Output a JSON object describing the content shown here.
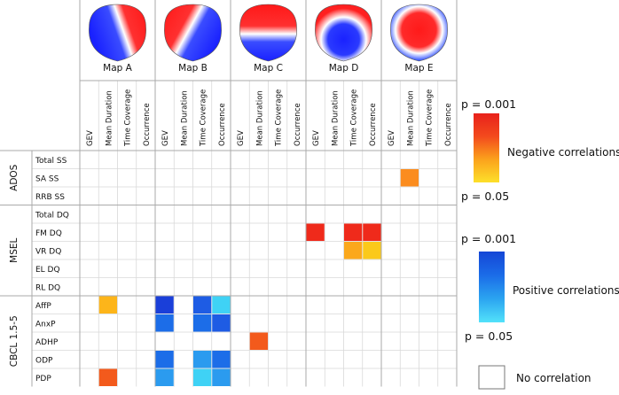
{
  "chart_data": {
    "type": "heatmap",
    "maps": [
      {
        "label": "Map A",
        "style": "A"
      },
      {
        "label": "Map B",
        "style": "B"
      },
      {
        "label": "Map C",
        "style": "C"
      },
      {
        "label": "Map D",
        "style": "D"
      },
      {
        "label": "Map E",
        "style": "E"
      }
    ],
    "measures": [
      "GEV",
      "Mean Duration",
      "Time Coverage",
      "Occurrence"
    ],
    "groups": [
      {
        "name": "ADOS",
        "rows": [
          "Total SS",
          "SA SS",
          "RRB SS"
        ]
      },
      {
        "name": "MSEL",
        "rows": [
          "Total DQ",
          "FM DQ",
          "VR DQ",
          "EL DQ",
          "RL DQ"
        ]
      },
      {
        "name": "CBCL 1.5-5",
        "rows": [
          "AffP",
          "AnxP",
          "ADHP",
          "ODP",
          "PDP"
        ]
      }
    ],
    "cell_colors": {
      "orange": "#fb8c1e",
      "red": "#ef2a1b",
      "red_orange": "#f35a1c",
      "yellow_orange": "#fba81c",
      "yellow": "#fbc91a",
      "amber": "#fdb51a",
      "blue_dark": "#1a3fd9",
      "blue": "#1c6de8",
      "blue_mid": "#1e5ce4",
      "blue_light": "#2b9bef",
      "cyan": "#3fd2f5"
    },
    "cells": [
      {
        "row": 1,
        "col": 17,
        "color": "orange"
      },
      {
        "row": 4,
        "col": 12,
        "color": "red"
      },
      {
        "row": 4,
        "col": 14,
        "color": "red"
      },
      {
        "row": 4,
        "col": 15,
        "color": "red"
      },
      {
        "row": 5,
        "col": 14,
        "color": "yellow_orange"
      },
      {
        "row": 5,
        "col": 15,
        "color": "yellow"
      },
      {
        "row": 8,
        "col": 1,
        "color": "amber"
      },
      {
        "row": 8,
        "col": 4,
        "color": "blue_dark"
      },
      {
        "row": 8,
        "col": 6,
        "color": "blue_mid"
      },
      {
        "row": 8,
        "col": 7,
        "color": "cyan"
      },
      {
        "row": 9,
        "col": 4,
        "color": "blue"
      },
      {
        "row": 9,
        "col": 6,
        "color": "blue"
      },
      {
        "row": 9,
        "col": 7,
        "color": "blue_mid"
      },
      {
        "row": 10,
        "col": 9,
        "color": "red_orange"
      },
      {
        "row": 11,
        "col": 4,
        "color": "blue"
      },
      {
        "row": 11,
        "col": 6,
        "color": "blue_light"
      },
      {
        "row": 11,
        "col": 7,
        "color": "blue"
      },
      {
        "row": 12,
        "col": 1,
        "color": "red_orange"
      },
      {
        "row": 12,
        "col": 4,
        "color": "blue_light"
      },
      {
        "row": 12,
        "col": 6,
        "color": "cyan"
      },
      {
        "row": 12,
        "col": 7,
        "color": "blue_light"
      }
    ],
    "legend": {
      "neg_top": "p = 0.001",
      "neg_bottom": "p = 0.05",
      "neg_label": "Negative correlations",
      "pos_top": "p = 0.001",
      "pos_bottom": "p = 0.05",
      "pos_label": "Positive correlations",
      "none_label": "No correlation",
      "neg_gradient": [
        "#e8211b",
        "#f34a1d",
        "#fba21c",
        "#fde02a"
      ],
      "pos_gradient": [
        "#1446d6",
        "#1b6ce8",
        "#2ba4f0",
        "#52e2fa"
      ]
    }
  }
}
